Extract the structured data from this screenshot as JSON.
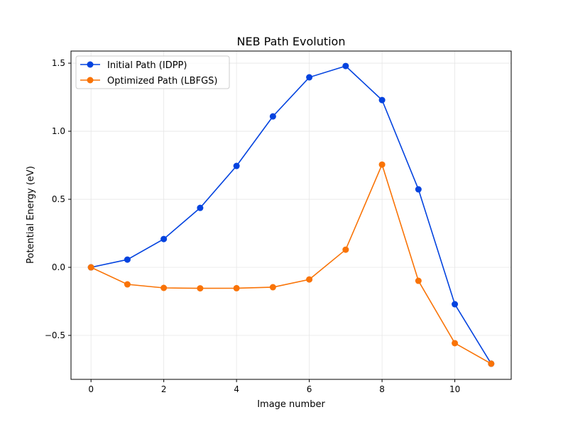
{
  "chart_data": {
    "type": "line",
    "title": "NEB Path Evolution",
    "xlabel": "Image number",
    "ylabel": "Potential Energy (eV)",
    "xlim": [
      -0.55,
      11.55
    ],
    "ylim": [
      -0.823,
      1.589
    ],
    "xticks": [
      0,
      2,
      4,
      6,
      8,
      10
    ],
    "xtick_labels": [
      "0",
      "2",
      "4",
      "6",
      "8",
      "10"
    ],
    "yticks": [
      -0.5,
      0.0,
      0.5,
      1.0,
      1.5
    ],
    "ytick_labels": [
      "−0.5",
      "0.0",
      "0.5",
      "1.0",
      "1.5"
    ],
    "grid": true,
    "legend_position": "upper-left",
    "x": [
      0,
      1,
      2,
      3,
      4,
      5,
      6,
      7,
      8,
      9,
      10,
      11
    ],
    "series": [
      {
        "name": "Initial Path (IDPP)",
        "color": "#0343df",
        "values": [
          0.0,
          0.057,
          0.208,
          0.437,
          0.745,
          1.109,
          1.396,
          1.479,
          1.229,
          0.573,
          -0.271,
          -0.708
        ]
      },
      {
        "name": "Optimized Path (LBFGS)",
        "color": "#f97306",
        "values": [
          0.0,
          -0.125,
          -0.151,
          -0.154,
          -0.153,
          -0.146,
          -0.089,
          0.13,
          0.755,
          -0.099,
          -0.557,
          -0.708
        ]
      }
    ]
  }
}
